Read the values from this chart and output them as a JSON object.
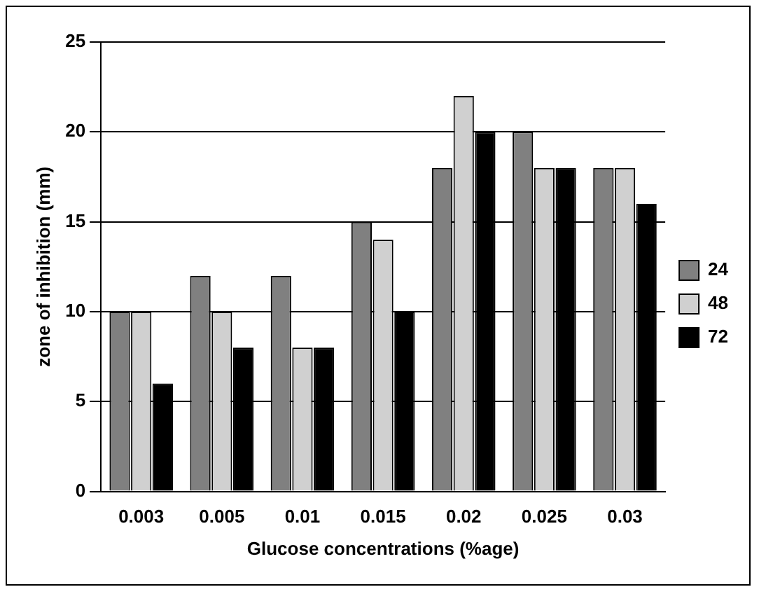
{
  "chart_data": {
    "type": "bar",
    "xlabel": "Glucose concentrations (%age)",
    "ylabel": "zone of inhibition (mm)",
    "categories": [
      "0.003",
      "0.005",
      "0.01",
      "0.015",
      "0.02",
      "0.025",
      "0.03"
    ],
    "series": [
      {
        "name": "24",
        "color": "#808080",
        "values": [
          10,
          12,
          12,
          15,
          18,
          20,
          18
        ]
      },
      {
        "name": "48",
        "color": "#d0d0d0",
        "values": [
          10,
          10,
          8,
          14,
          22,
          18,
          18
        ]
      },
      {
        "name": "72",
        "color": "#000000",
        "values": [
          6,
          8,
          8,
          10,
          20,
          18,
          16
        ]
      }
    ],
    "ylim": [
      0,
      25
    ],
    "yticks": [
      0,
      5,
      10,
      15,
      20,
      25
    ],
    "grid": "y",
    "legend": "right"
  }
}
